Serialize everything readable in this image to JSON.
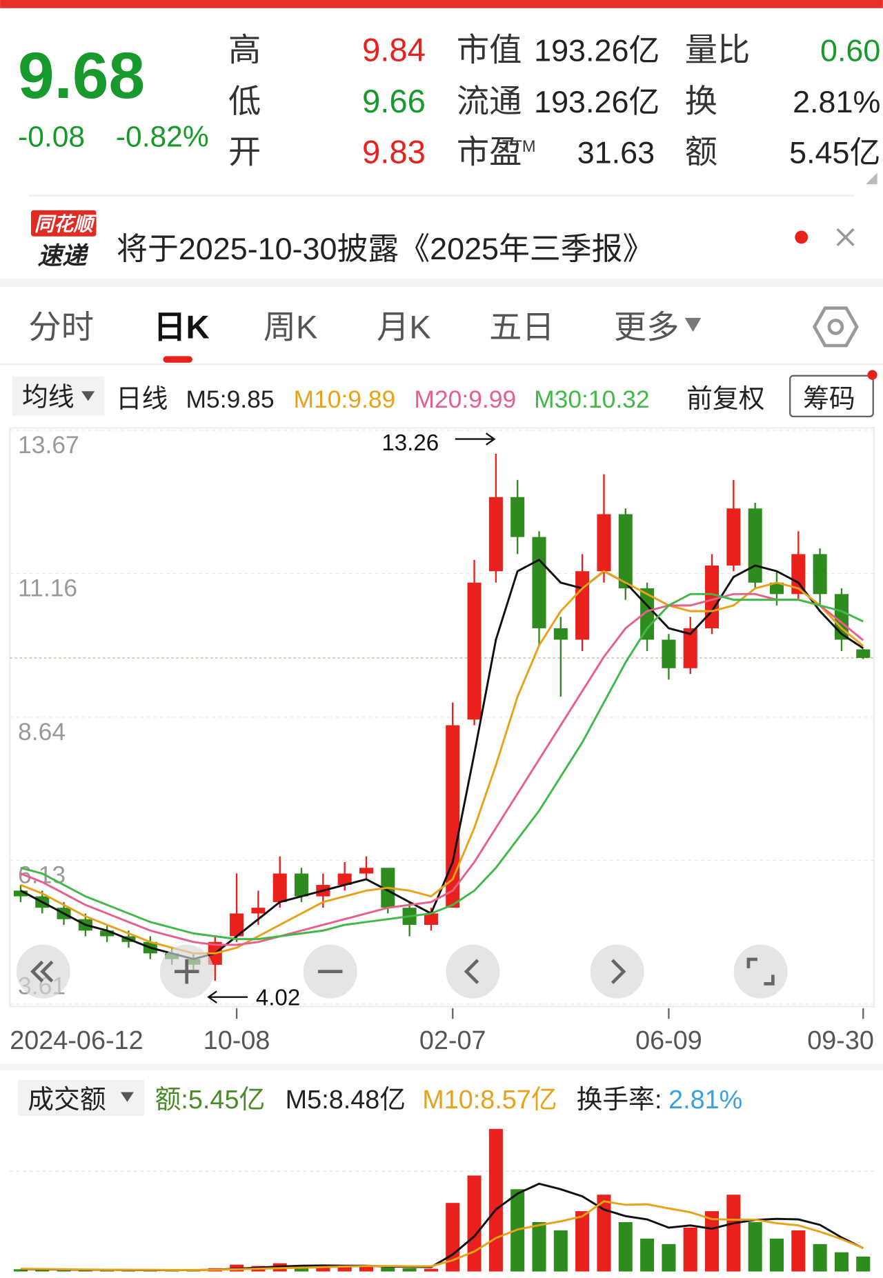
{
  "quote": {
    "price": "9.68",
    "change": "-0.08",
    "change_pct": "-0.82%",
    "stats": [
      [
        "高",
        "9.84"
      ],
      [
        "低",
        "9.66"
      ],
      [
        "开",
        "9.83"
      ]
    ],
    "market": [
      [
        "市值",
        "193.26亿"
      ],
      [
        "流通",
        "193.26亿"
      ],
      [
        "市盈",
        "31.63"
      ]
    ],
    "market_sup": "TTM",
    "other": [
      [
        "量比",
        "0.60"
      ],
      [
        "换",
        "2.81%"
      ],
      [
        "额",
        "5.45亿"
      ]
    ]
  },
  "news": {
    "badge": [
      "同花顺",
      "速递"
    ],
    "text": "将于2025-10-30披露《2025年三季报》"
  },
  "tabs": [
    "分时",
    "日K",
    "周K",
    "月K",
    "五日",
    "更多"
  ],
  "indicators": {
    "ma_menu": "均线",
    "period": "日线",
    "m5": "M5:9.85",
    "m10": "M10:9.89",
    "m20": "M20:9.99",
    "m30": "M30:10.32",
    "adjust": "前复权",
    "chips": "筹码"
  },
  "volume_header": {
    "menu": "成交额",
    "amount": "额:5.45亿",
    "m5": "M5:8.48亿",
    "m10": "M10:8.57亿",
    "turnover_label": "换手率:",
    "turnover": "2.81%"
  },
  "chart_data": [
    {
      "type": "candlestick",
      "categories": [
        "2024-06-12",
        null,
        null,
        null,
        null,
        null,
        null,
        null,
        null,
        null,
        "10-08",
        null,
        null,
        null,
        null,
        null,
        null,
        null,
        null,
        null,
        "02-07",
        null,
        null,
        null,
        null,
        null,
        null,
        null,
        null,
        null,
        "06-09",
        null,
        null,
        null,
        null,
        null,
        null,
        null,
        null,
        "09-30"
      ],
      "candles": [
        [
          5.6,
          5.7,
          5.4,
          5.5
        ],
        [
          5.5,
          5.6,
          5.2,
          5.3
        ],
        [
          5.3,
          5.4,
          5.0,
          5.1
        ],
        [
          5.1,
          5.2,
          4.8,
          4.9
        ],
        [
          4.9,
          5.0,
          4.7,
          4.8
        ],
        [
          4.8,
          4.9,
          4.6,
          4.7
        ],
        [
          4.7,
          4.8,
          4.4,
          4.5
        ],
        [
          4.5,
          4.6,
          4.3,
          4.4
        ],
        [
          4.4,
          4.5,
          4.2,
          4.3
        ],
        [
          4.3,
          4.8,
          4.02,
          4.7
        ],
        [
          4.8,
          5.9,
          4.7,
          5.2
        ],
        [
          5.2,
          5.6,
          5.0,
          5.3
        ],
        [
          5.4,
          6.2,
          5.3,
          5.9
        ],
        [
          5.9,
          6.0,
          5.4,
          5.5
        ],
        [
          5.5,
          5.9,
          5.3,
          5.7
        ],
        [
          5.7,
          6.1,
          5.6,
          5.9
        ],
        [
          5.9,
          6.2,
          5.8,
          6.0
        ],
        [
          6.0,
          6.0,
          5.2,
          5.3
        ],
        [
          5.3,
          5.4,
          4.8,
          5.0
        ],
        [
          5.0,
          5.3,
          4.9,
          5.2
        ],
        [
          5.3,
          8.9,
          5.3,
          8.5
        ],
        [
          8.6,
          11.4,
          8.5,
          11.0
        ],
        [
          11.2,
          13.26,
          11.0,
          12.5
        ],
        [
          12.5,
          12.8,
          11.5,
          11.8
        ],
        [
          11.8,
          11.9,
          9.9,
          10.2
        ],
        [
          10.2,
          10.4,
          9.0,
          10.0
        ],
        [
          10.0,
          11.5,
          9.8,
          11.2
        ],
        [
          11.2,
          12.9,
          11.0,
          12.2
        ],
        [
          12.2,
          12.3,
          10.7,
          10.9
        ],
        [
          10.9,
          11.0,
          9.8,
          10.0
        ],
        [
          10.0,
          10.1,
          9.3,
          9.5
        ],
        [
          9.5,
          10.4,
          9.4,
          10.2
        ],
        [
          10.2,
          11.5,
          10.1,
          11.3
        ],
        [
          11.3,
          12.8,
          11.2,
          12.3
        ],
        [
          12.3,
          12.4,
          10.9,
          11.0
        ],
        [
          11.0,
          11.2,
          10.6,
          10.8
        ],
        [
          10.8,
          11.9,
          10.7,
          11.5
        ],
        [
          11.5,
          11.6,
          10.6,
          10.8
        ],
        [
          10.8,
          10.9,
          9.8,
          10.0
        ],
        [
          9.83,
          9.84,
          9.66,
          9.68
        ]
      ],
      "series": [
        {
          "name": "M5",
          "color": "#111111",
          "values": [
            5.6,
            5.4,
            5.2,
            5.0,
            4.9,
            4.75,
            4.6,
            4.5,
            4.4,
            4.5,
            4.8,
            5.1,
            5.4,
            5.5,
            5.6,
            5.7,
            5.8,
            5.6,
            5.4,
            5.2,
            6.1,
            8.0,
            10.0,
            11.2,
            11.4,
            11.0,
            10.9,
            11.2,
            11.0,
            10.6,
            10.2,
            10.1,
            10.5,
            11.1,
            11.3,
            11.2,
            11.0,
            10.5,
            10.1,
            9.85
          ]
        },
        {
          "name": "M10",
          "color": "#e8a21a",
          "values": [
            5.7,
            5.55,
            5.35,
            5.15,
            5.0,
            4.85,
            4.7,
            4.6,
            4.5,
            4.5,
            4.6,
            4.8,
            5.0,
            5.2,
            5.4,
            5.5,
            5.6,
            5.65,
            5.6,
            5.5,
            5.8,
            6.7,
            7.8,
            9.0,
            9.9,
            10.5,
            10.9,
            11.2,
            11.0,
            10.8,
            10.6,
            10.5,
            10.5,
            10.6,
            10.9,
            11.0,
            10.9,
            10.6,
            10.2,
            9.89
          ]
        },
        {
          "name": "M20",
          "color": "#e8608a",
          "values": [
            5.9,
            5.75,
            5.55,
            5.35,
            5.2,
            5.05,
            4.9,
            4.8,
            4.7,
            4.65,
            4.65,
            4.7,
            4.8,
            4.9,
            5.0,
            5.1,
            5.2,
            5.3,
            5.35,
            5.4,
            5.6,
            6.1,
            6.7,
            7.3,
            7.9,
            8.5,
            9.1,
            9.7,
            10.2,
            10.5,
            10.6,
            10.6,
            10.7,
            10.8,
            10.8,
            10.7,
            10.7,
            10.6,
            10.3,
            9.99
          ]
        },
        {
          "name": "M30",
          "color": "#43b84a",
          "values": [
            6.0,
            5.9,
            5.7,
            5.5,
            5.35,
            5.2,
            5.05,
            4.95,
            4.85,
            4.8,
            4.75,
            4.75,
            4.8,
            4.85,
            4.9,
            5.0,
            5.05,
            5.1,
            5.15,
            5.2,
            5.35,
            5.6,
            6.0,
            6.5,
            7.0,
            7.6,
            8.2,
            8.9,
            9.6,
            10.2,
            10.6,
            10.8,
            10.8,
            10.7,
            10.7,
            10.7,
            10.7,
            10.6,
            10.5,
            10.32
          ]
        }
      ],
      "ylim": [
        3.61,
        13.67
      ],
      "yticks": [
        13.67,
        11.16,
        8.64,
        6.13,
        3.61
      ],
      "up_color": "#e8211c",
      "down_color": "#2e8b1e",
      "grid": true
    },
    {
      "type": "bar",
      "values": [
        0.8,
        0.6,
        0.5,
        0.5,
        0.6,
        0.5,
        0.5,
        0.4,
        0.5,
        1.2,
        2.5,
        2.0,
        3.0,
        1.8,
        1.5,
        2.0,
        2.2,
        1.5,
        1.2,
        1.0,
        25,
        35,
        52,
        30,
        18,
        15,
        22,
        28,
        18,
        12,
        10,
        16,
        22,
        28,
        18,
        12,
        15,
        10,
        7,
        5.45
      ],
      "series": [
        {
          "name": "M5",
          "color": "#111111",
          "values": [
            0.9,
            0.8,
            0.7,
            0.6,
            0.6,
            0.55,
            0.5,
            0.5,
            0.5,
            0.65,
            1.0,
            1.4,
            1.8,
            2.1,
            2.2,
            2.1,
            2.1,
            1.8,
            1.7,
            1.6,
            6.2,
            12.8,
            22.6,
            28.4,
            32,
            30,
            27.4,
            22.6,
            20.2,
            19,
            16,
            16.8,
            15.6,
            17.6,
            18.8,
            19.2,
            19,
            17,
            12.4,
            8.48
          ]
        },
        {
          "name": "M10",
          "color": "#e8a21a",
          "values": [
            1.0,
            0.9,
            0.8,
            0.7,
            0.65,
            0.6,
            0.6,
            0.55,
            0.55,
            0.6,
            0.8,
            1.0,
            1.2,
            1.4,
            1.6,
            1.8,
            2.0,
            2.0,
            1.9,
            1.9,
            4.1,
            7.3,
            12.2,
            15.3,
            16.9,
            18.3,
            20.1,
            25.6,
            24.3,
            24.5,
            23,
            21.6,
            19.1,
            18.9,
            18.9,
            17.6,
            16.8,
            14.5,
            11.8,
            8.57
          ]
        }
      ],
      "ylim": [
        0,
        55
      ]
    }
  ]
}
